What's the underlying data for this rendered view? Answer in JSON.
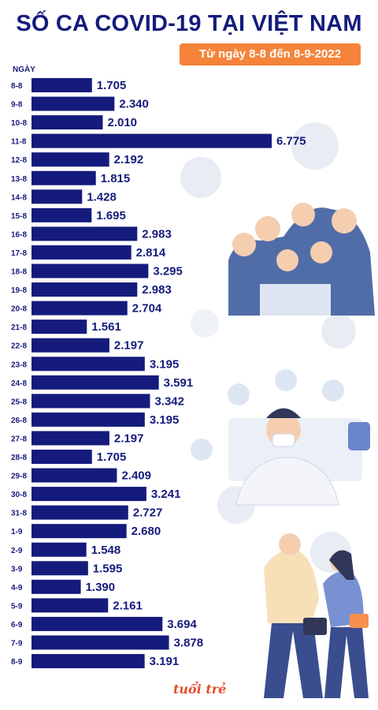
{
  "header": {
    "title": "SỐ CA COVID-19 TẠI VIỆT NAM",
    "subtitle": "Từ ngày 8-8 đến 8-9-2022"
  },
  "brand": {
    "logo_text": "tuổi trẻ"
  },
  "colors": {
    "bar": "#151b7c",
    "badge": "#f5843a",
    "text": "#151b7c"
  },
  "chart_data": {
    "type": "bar",
    "orientation": "horizontal",
    "xlabel": "",
    "ylabel": "NGÀY",
    "categories": [
      "8-8",
      "9-8",
      "10-8",
      "11-8",
      "12-8",
      "13-8",
      "14-8",
      "15-8",
      "16-8",
      "17-8",
      "18-8",
      "19-8",
      "20-8",
      "21-8",
      "22-8",
      "23-8",
      "24-8",
      "25-8",
      "26-8",
      "27-8",
      "28-8",
      "29-8",
      "30-8",
      "31-8",
      "1-9",
      "2-9",
      "3-9",
      "4-9",
      "5-9",
      "6-9",
      "7-9",
      "8-9"
    ],
    "values": [
      1705,
      2340,
      2010,
      6775,
      2192,
      1815,
      1428,
      1695,
      2983,
      2814,
      3295,
      2983,
      2704,
      1561,
      2197,
      3195,
      3591,
      3342,
      3195,
      2197,
      1705,
      2409,
      3241,
      2727,
      2680,
      1548,
      1595,
      1390,
      2161,
      3694,
      3878,
      3191
    ],
    "value_labels": [
      "1.705",
      "2.340",
      "2.010",
      "6.775",
      "2.192",
      "1.815",
      "1.428",
      "1.695",
      "2.983",
      "2.814",
      "3.295",
      "2.983",
      "2.704",
      "1.561",
      "2.197",
      "3.195",
      "3.591",
      "3.342",
      "3.195",
      "2.197",
      "1.705",
      "2.409",
      "3.241",
      "2.727",
      "2.680",
      "1.548",
      "1.595",
      "1.390",
      "2.161",
      "3.694",
      "3.878",
      "3.191"
    ],
    "xlim": [
      0,
      6775
    ],
    "grid": false,
    "legend": "none"
  }
}
